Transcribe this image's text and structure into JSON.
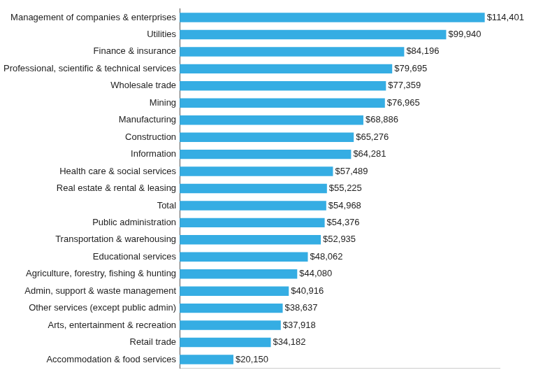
{
  "chart_data": {
    "type": "bar",
    "orientation": "horizontal",
    "categories": [
      "Management of companies & enterprises",
      "Utilities",
      "Finance & insurance",
      "Professional, scientific & technical services",
      "Wholesale trade",
      "Mining",
      "Manufacturing",
      "Construction",
      "Information",
      "Health care & social services",
      "Real estate & rental & leasing",
      "Total",
      "Public administration",
      "Transportation & warehousing",
      "Educational services",
      "Agriculture, forestry, fishing & hunting",
      "Admin, support & waste management",
      "Other services (except public admin)",
      "Arts, entertainment & recreation",
      "Retail trade",
      "Accommodation & food services"
    ],
    "values": [
      114401,
      99940,
      84196,
      79695,
      77359,
      76965,
      68886,
      65276,
      64281,
      57489,
      55225,
      54968,
      54376,
      52935,
      48062,
      44080,
      40916,
      38637,
      37918,
      34182,
      20150
    ],
    "value_labels": [
      "$114,401",
      "$99,940",
      "$84,196",
      "$79,695",
      "$77,359",
      "$76,965",
      "$68,886",
      "$65,276",
      "$64,281",
      "$57,489",
      "$55,225",
      "$54,968",
      "$54,376",
      "$52,935",
      "$48,062",
      "$44,080",
      "$40,916",
      "$38,637",
      "$37,918",
      "$34,182",
      "$20,150"
    ],
    "data_labels": true,
    "color": "#35ade3",
    "xlim": [
      0,
      120000
    ],
    "grid": false,
    "tick_labels": "y"
  }
}
